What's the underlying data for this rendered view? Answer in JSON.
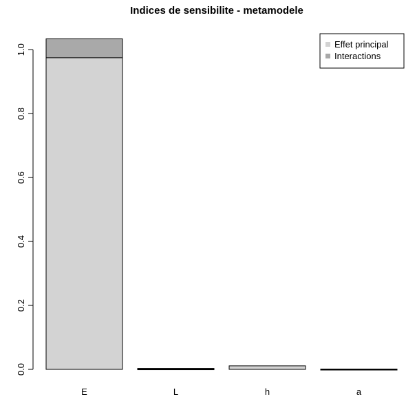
{
  "chart_data": {
    "type": "bar",
    "stacked": true,
    "title": "Indices de sensibilite - metamodele",
    "xlabel": "",
    "ylabel": "",
    "categories": [
      "E",
      "L",
      "h",
      "a"
    ],
    "series": [
      {
        "name": "Effet principal",
        "values": [
          0.975,
          0.001,
          0.011,
          0.0
        ],
        "color": "#d3d3d3"
      },
      {
        "name": "Interactions",
        "values": [
          0.059,
          0.002,
          0.0,
          0.001
        ],
        "color": "#a9a9a9"
      }
    ],
    "ylim": [
      0,
      1.05
    ],
    "yticks": [
      "0.0",
      "0.2",
      "0.4",
      "0.6",
      "0.8",
      "1.0"
    ],
    "grid": false,
    "legend_position": "top-right"
  }
}
